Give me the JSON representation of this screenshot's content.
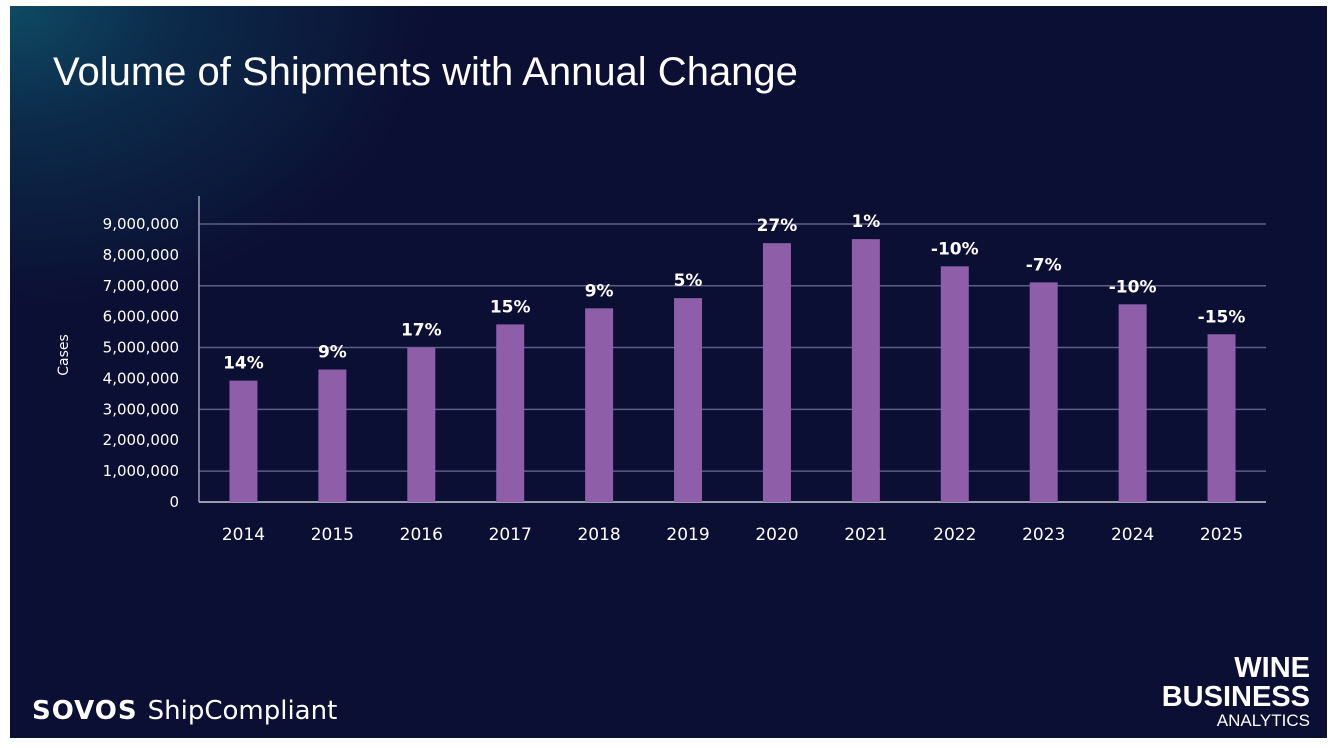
{
  "chart_data": {
    "type": "bar",
    "title": "Volume of Shipments with Annual Change",
    "xlabel": "",
    "ylabel": "Cases",
    "ylim": [
      0,
      9000000
    ],
    "yticks": [
      0,
      1000000,
      2000000,
      3000000,
      4000000,
      5000000,
      6000000,
      7000000,
      8000000,
      9000000
    ],
    "ytick_labels": [
      "0",
      "1,000,000",
      "2,000,000",
      "3,000,000",
      "4,000,000",
      "5,000,000",
      "6,000,000",
      "7,000,000",
      "8,000,000",
      "9,000,000"
    ],
    "gridlines_at": [
      1000000,
      3000000,
      5000000,
      7000000,
      9000000
    ],
    "grid": true,
    "categories": [
      "2014",
      "2015",
      "2016",
      "2017",
      "2018",
      "2019",
      "2020",
      "2021",
      "2022",
      "2023",
      "2024",
      "2025"
    ],
    "values": [
      3930000,
      4290000,
      5000000,
      5750000,
      6270000,
      6600000,
      8380000,
      8510000,
      7630000,
      7110000,
      6400000,
      5430000
    ],
    "data_labels": [
      "14%",
      "9%",
      "17%",
      "15%",
      "9%",
      "5%",
      "27%",
      "1%",
      "-10%",
      "-7%",
      "-10%",
      "-15%"
    ],
    "colors": {
      "bar": "#8e5ea8",
      "background": "#0b0f33",
      "grid": "#5c5f86"
    }
  },
  "branding": {
    "left_logo_bold": "SOVOS",
    "left_logo_text": "ShipCompliant",
    "right_logo_line1": "WINE",
    "right_logo_line2": "BUSINESS",
    "right_logo_line3": "ANALYTICS"
  }
}
